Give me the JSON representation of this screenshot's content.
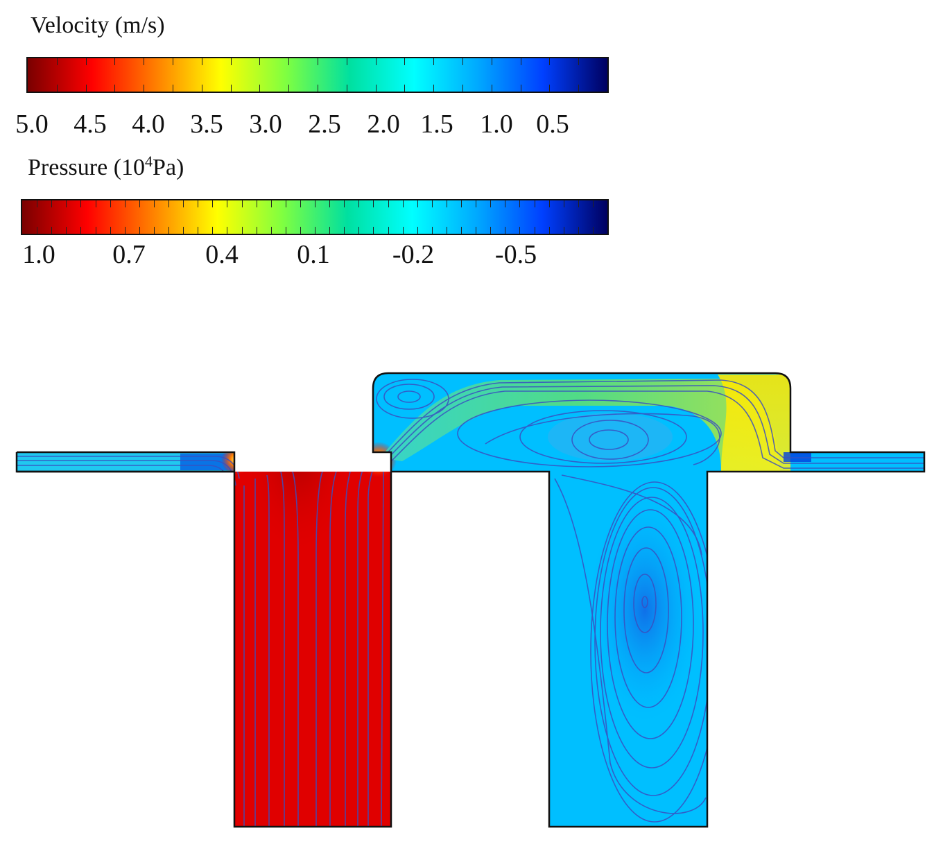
{
  "velocity_legend": {
    "title": "Velocity (m/s)",
    "tick_labels": [
      "5.0",
      "4.5",
      "4.0",
      "3.5",
      "3.0",
      "2.5",
      "2.0",
      "1.5",
      "1.0",
      "0.5"
    ],
    "colors": [
      "#7a0000",
      "#ff0000",
      "#ff8000",
      "#ffff00",
      "#80ff40",
      "#00e0a0",
      "#00ffff",
      "#00a8ff",
      "#0040ff",
      "#000060"
    ]
  },
  "pressure_legend": {
    "title_main": "Pressure (10",
    "title_sup": "4",
    "title_unit": "Pa)",
    "tick_labels": [
      "1.0",
      "0.7",
      "0.4",
      "0.1",
      "-0.2",
      "-0.5"
    ],
    "colors": [
      "#7a0000",
      "#ff0000",
      "#ff8000",
      "#ffff00",
      "#80ff40",
      "#00e0a0",
      "#00ffff",
      "#00a8ff",
      "#0040ff",
      "#000060"
    ]
  },
  "field_colors": {
    "high_pressure": "#e00000",
    "high_pressure_core": "#b00000",
    "low_pressure": "#00bfff",
    "jet": "#3ddc84",
    "jet_fast": "#ffe000",
    "vortex": "#1a7fe0",
    "streamline": "#3a4fc0",
    "outline": "#111111"
  }
}
